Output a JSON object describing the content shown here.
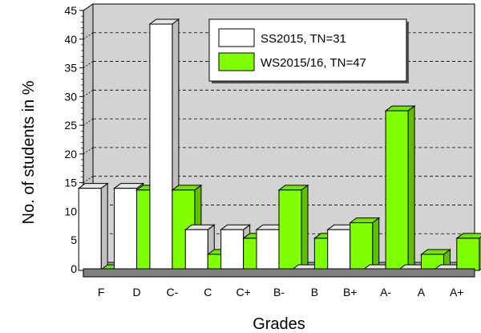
{
  "chart_data": {
    "type": "bar",
    "title": "",
    "xlabel": "Grades",
    "ylabel": "No. of students in %",
    "categories": [
      "F",
      "D",
      "C-",
      "C",
      "C+",
      "B-",
      "B",
      "B+",
      "A-",
      "A",
      "A+"
    ],
    "series": [
      {
        "name": "SS2015, TN=31",
        "color": "#ffffff",
        "values": [
          14.3,
          14.3,
          42.9,
          7.1,
          7.1,
          7.1,
          0,
          7.1,
          0,
          0,
          0
        ]
      },
      {
        "name": "WS2015/16, TN=47",
        "color": "#7fff00",
        "values": [
          0,
          14,
          14,
          2.8,
          5.6,
          14,
          5.6,
          8.3,
          27.8,
          2.8,
          5.6
        ]
      }
    ],
    "ylim": [
      0,
      45
    ],
    "yticks": [
      0,
      5,
      10,
      15,
      20,
      25,
      30,
      35,
      40,
      45
    ],
    "grid": true,
    "legend_position": "top-right",
    "background_color": "#d3d3d3",
    "floor_color": "#808080"
  }
}
